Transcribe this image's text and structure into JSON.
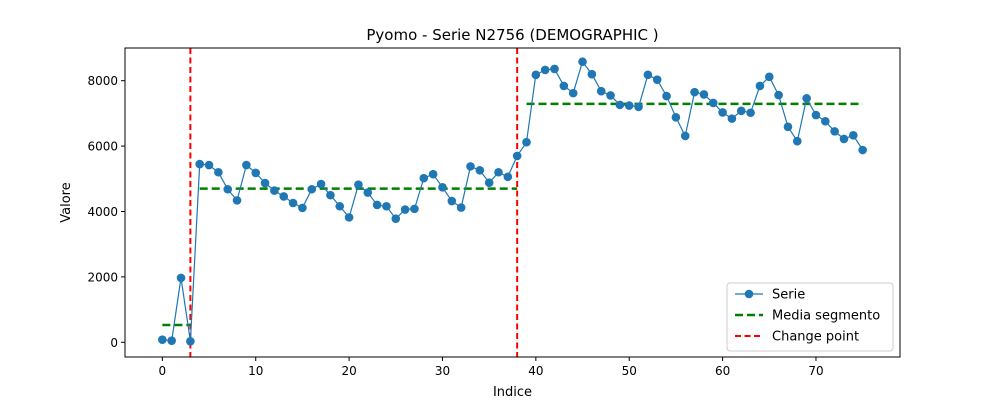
{
  "chart_data": {
    "type": "line",
    "title": "Pyomo - Serie N2756 (DEMOGRAPHIC )",
    "xlabel": "Indice",
    "ylabel": "Valore",
    "xlim": [
      -4,
      79
    ],
    "ylim": [
      -450,
      9000
    ],
    "xticks": [
      0,
      10,
      20,
      30,
      40,
      50,
      60,
      70
    ],
    "yticks": [
      0,
      2000,
      4000,
      6000,
      8000
    ],
    "grid": false,
    "legend_position": "lower-right",
    "series": [
      {
        "name": "Serie",
        "color": "#1f77b4",
        "marker": "circle",
        "x": [
          0,
          1,
          2,
          3,
          4,
          5,
          6,
          7,
          8,
          9,
          10,
          11,
          12,
          13,
          14,
          15,
          16,
          17,
          18,
          19,
          20,
          21,
          22,
          23,
          24,
          25,
          26,
          27,
          28,
          29,
          30,
          31,
          32,
          33,
          34,
          35,
          36,
          37,
          38,
          39,
          40,
          41,
          42,
          43,
          44,
          45,
          46,
          47,
          48,
          49,
          50,
          51,
          52,
          53,
          54,
          55,
          56,
          57,
          58,
          59,
          60,
          61,
          62,
          63,
          64,
          65,
          66,
          67,
          68,
          69,
          70,
          71,
          72,
          73,
          74,
          75
        ],
        "y": [
          80,
          50,
          1970,
          30,
          5450,
          5420,
          5200,
          4680,
          4340,
          5420,
          5180,
          4870,
          4640,
          4460,
          4260,
          4110,
          4680,
          4840,
          4500,
          4160,
          3820,
          4820,
          4580,
          4200,
          4160,
          3780,
          4060,
          4080,
          5020,
          5140,
          4740,
          4320,
          4120,
          5380,
          5260,
          4880,
          5200,
          5060,
          5700,
          6120,
          8180,
          8330,
          8360,
          7840,
          7620,
          8580,
          8200,
          7680,
          7550,
          7260,
          7240,
          7200,
          8180,
          8030,
          7530,
          6880,
          6310,
          7650,
          7580,
          7320,
          7030,
          6840,
          7080,
          7020,
          7840,
          8120,
          7560,
          6590,
          6150,
          7460,
          6950,
          6760,
          6450,
          6220,
          6330,
          5880
        ]
      },
      {
        "name": "Media segmento",
        "color": "#008000",
        "style": "dashed",
        "segments": [
          {
            "x": [
              0,
              3
            ],
            "y": [
              530,
              530
            ]
          },
          {
            "x": [
              4,
              38
            ],
            "y": [
              4700,
              4700
            ]
          },
          {
            "x": [
              39,
              75
            ],
            "y": [
              7290,
              7290
            ]
          }
        ]
      },
      {
        "name": "Change point",
        "color": "#ff0000",
        "style": "dashed",
        "x_positions": [
          3,
          38
        ]
      }
    ]
  }
}
